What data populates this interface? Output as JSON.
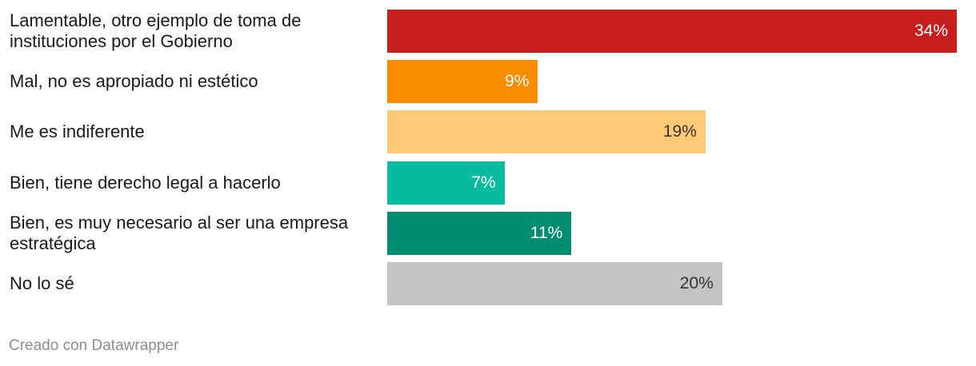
{
  "chart_data": {
    "type": "bar",
    "orientation": "horizontal",
    "categories": [
      "Lamentable, otro ejemplo de toma de instituciones por el Gobierno",
      "Mal, no es apropiado ni estético",
      "Me es indiferente",
      "Bien, tiene derecho legal a hacerlo",
      "Bien, es muy necesario al ser una empresa estratégica",
      "No lo sé"
    ],
    "values": [
      34,
      9,
      19,
      7,
      11,
      20
    ],
    "value_labels": [
      "34%",
      "9%",
      "19%",
      "7%",
      "11%",
      "20%"
    ],
    "colors": [
      "#c71e1d",
      "#fa8c00",
      "#ffca76",
      "#09bb9f",
      "#008d70",
      "#c4c4c4"
    ],
    "label_colors": [
      "#ffffff",
      "#ffffff",
      "#333333",
      "#ffffff",
      "#ffffff",
      "#333333"
    ],
    "xlim": [
      0,
      34
    ],
    "grid": false,
    "legend": "none"
  },
  "footer": {
    "credit": "Creado con Datawrapper"
  }
}
